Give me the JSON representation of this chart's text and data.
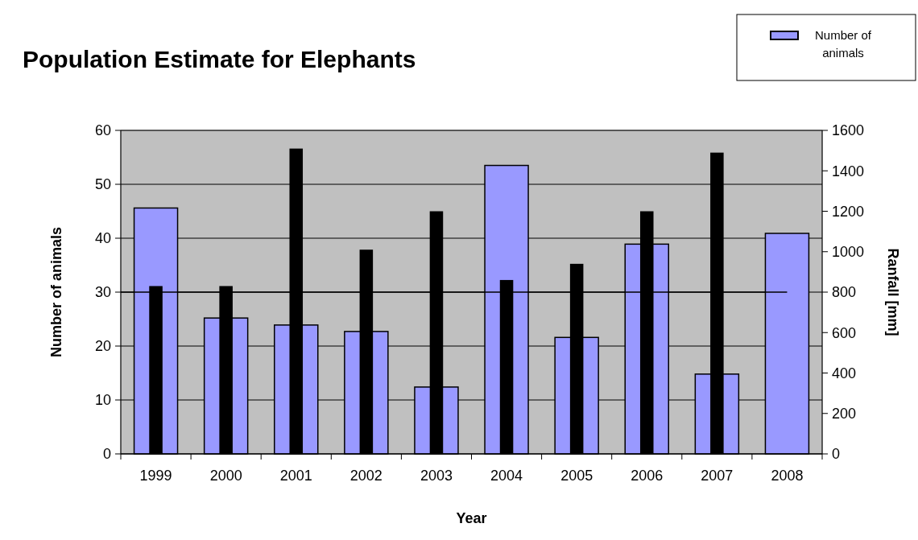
{
  "chart_data": {
    "type": "bar",
    "title": "Population Estimate for Elephants",
    "xlabel": "Year",
    "ylabel": "Number of animals",
    "y2label": "Ranfall [mm]",
    "categories": [
      "1999",
      "2000",
      "2001",
      "2002",
      "2003",
      "2004",
      "2005",
      "2006",
      "2007",
      "2008"
    ],
    "series": [
      {
        "name": "Number of animals",
        "color": "#9999ff",
        "values": [
          45.6,
          25.2,
          23.9,
          22.7,
          12.4,
          53.5,
          21.6,
          38.9,
          14.8,
          40.9
        ]
      },
      {
        "color": "#000000",
        "axis": "y2",
        "values": [
          830,
          830,
          1510,
          1010,
          1200,
          860,
          940,
          1200,
          1490,
          null
        ]
      }
    ],
    "ylim": [
      0,
      60
    ],
    "yticks": [
      0,
      10,
      20,
      30,
      40,
      50,
      60
    ],
    "y2lim": [
      0,
      1600
    ],
    "y2ticks": [
      0,
      200,
      400,
      600,
      800,
      1000,
      1200,
      1400,
      1600
    ],
    "ref_lines": [
      {
        "axis": "y",
        "value": 30,
        "color": "#000000"
      }
    ],
    "grid": "y",
    "legend": "top right"
  }
}
